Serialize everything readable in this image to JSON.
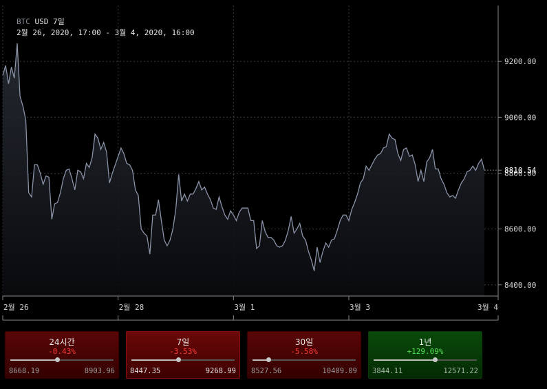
{
  "legend": {
    "symbol": "BTC",
    "currency": "USD 7일",
    "range": "2월 26, 2020, 17:00 - 3월 4, 2020, 16:00"
  },
  "chart_data": {
    "type": "area",
    "title": "",
    "xlabel": "",
    "ylabel": "",
    "ylim": [
      8360,
      9400
    ],
    "y_ticks": [
      "9200.00",
      "9000.00",
      "8800.00",
      "8600.00",
      "8400.00"
    ],
    "y_tick_values": [
      9200,
      9000,
      8800,
      8600,
      8400
    ],
    "x_ticks": [
      "2월 26",
      "2월 28",
      "3월 1",
      "3월 3",
      "3월 4"
    ],
    "x_tick_index": [
      0,
      40,
      80,
      120,
      158
    ],
    "current_value": "8810.54",
    "current_numeric": 8810.54,
    "grid": true,
    "series": [
      {
        "values": [
          9150,
          9185,
          9120,
          9180,
          9140,
          9265,
          9075,
          9040,
          8990,
          8730,
          8715,
          8830,
          8830,
          8800,
          8760,
          8790,
          8785,
          8635,
          8690,
          8695,
          8730,
          8780,
          8810,
          8815,
          8780,
          8740,
          8810,
          8805,
          8780,
          8835,
          8820,
          8855,
          8940,
          8925,
          8885,
          8910,
          8875,
          8765,
          8800,
          8830,
          8860,
          8890,
          8870,
          8835,
          8830,
          8810,
          8740,
          8720,
          8600,
          8585,
          8575,
          8510,
          8650,
          8650,
          8705,
          8630,
          8560,
          8540,
          8560,
          8600,
          8670,
          8795,
          8700,
          8725,
          8700,
          8725,
          8725,
          8745,
          8770,
          8740,
          8750,
          8725,
          8705,
          8675,
          8670,
          8715,
          8680,
          8650,
          8635,
          8665,
          8650,
          8630,
          8660,
          8675,
          8675,
          8675,
          8630,
          8630,
          8530,
          8540,
          8630,
          8590,
          8570,
          8570,
          8560,
          8540,
          8535,
          8540,
          8560,
          8595,
          8645,
          8585,
          8600,
          8620,
          8575,
          8560,
          8520,
          8490,
          8450,
          8535,
          8480,
          8520,
          8550,
          8535,
          8560,
          8565,
          8595,
          8630,
          8650,
          8650,
          8630,
          8670,
          8695,
          8725,
          8765,
          8780,
          8825,
          8810,
          8830,
          8850,
          8865,
          8870,
          8890,
          8895,
          8940,
          8925,
          8920,
          8870,
          8845,
          8885,
          8890,
          8860,
          8865,
          8830,
          8770,
          8810,
          8770,
          8840,
          8855,
          8885,
          8815,
          8815,
          8780,
          8760,
          8730,
          8715,
          8720,
          8710,
          8740,
          8765,
          8780,
          8805,
          8810,
          8825,
          8810,
          8835,
          8850,
          8810
        ]
      }
    ]
  },
  "cards": [
    {
      "period": "24시간",
      "change": "-0.43%",
      "low": "8668.19",
      "high": "8903.96",
      "position": 0.45,
      "tone": "neg",
      "selected": false
    },
    {
      "period": "7일",
      "change": "-3.53%",
      "low": "8447.35",
      "high": "9268.99",
      "position": 0.45,
      "tone": "neg",
      "selected": true
    },
    {
      "period": "30일",
      "change": "-5.58%",
      "low": "8527.56",
      "high": "10409.09",
      "position": 0.15,
      "tone": "neg",
      "selected": false
    },
    {
      "period": "1년",
      "change": "+129.09%",
      "low": "3844.11",
      "high": "12571.22",
      "position": 0.59,
      "tone": "pos",
      "selected": false
    }
  ],
  "colors": {
    "line": "#8a93a8",
    "positive": "#4fe04f",
    "negative": "#ff3b3b"
  }
}
